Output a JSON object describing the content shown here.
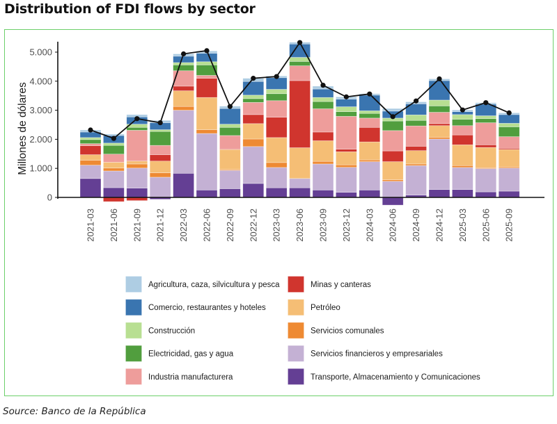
{
  "page": {
    "title": "Distribution of FDI flows by sector",
    "source": "Source: Banco de la República"
  },
  "chart_data": {
    "type": "bar",
    "stacked": true,
    "title": "Distribution of FDI flows by sector",
    "xlabel": "",
    "ylabel": "Millones de dólares",
    "ylim": [
      -300,
      5400
    ],
    "yticks": [
      0,
      1000,
      2000,
      3000,
      4000,
      5000
    ],
    "ytick_labels": [
      "0",
      "1.000",
      "2.000",
      "3.000",
      "4.000",
      "5.000"
    ],
    "grid": false,
    "legend_position": "bottom",
    "categories": [
      "2021-03",
      "2021-06",
      "2021-09",
      "2021-12",
      "2022-03",
      "2022-06",
      "2022-09",
      "2022-12",
      "2023-03",
      "2023-06",
      "2023-09",
      "2023-12",
      "2024-03",
      "2024-06",
      "2024-09",
      "2024-12",
      "2025-03",
      "2025-06",
      "2025-09"
    ],
    "series": [
      {
        "name": "Transporte, Almacenamiento y Comunicaciones",
        "color": "#643f94",
        "values": [
          650,
          335,
          320,
          -65,
          830,
          255,
          300,
          480,
          330,
          330,
          255,
          175,
          255,
          -265,
          80,
          270,
          270,
          190,
          215
        ]
      },
      {
        "name": "Servicios financieros y empresariales",
        "color": "#c4b1d4",
        "values": [
          460,
          575,
          690,
          695,
          2170,
          1945,
          630,
          1270,
          700,
          320,
          895,
          860,
          975,
          555,
          1015,
          1740,
          760,
          800,
          795
        ]
      },
      {
        "name": "Servicios comunales",
        "color": "#ee8a33",
        "values": [
          170,
          100,
          140,
          150,
          130,
          130,
          30,
          260,
          170,
          0,
          90,
          85,
          60,
          50,
          55,
          60,
          65,
          30,
          40
        ]
      },
      {
        "name": "Petróleo",
        "color": "#f5be75",
        "values": [
          190,
          200,
          100,
          405,
          540,
          1110,
          690,
          530,
          860,
          1060,
          710,
          450,
          620,
          625,
          460,
          400,
          715,
          700,
          600
        ]
      },
      {
        "name": "Minas y canteras",
        "color": "#d0352e",
        "values": [
          310,
          -145,
          -110,
          220,
          160,
          660,
          20,
          310,
          700,
          2310,
          300,
          90,
          500,
          370,
          150,
          70,
          340,
          90,
          40
        ]
      },
      {
        "name": "Industria manufacturera",
        "color": "#ee9d9b",
        "values": [
          70,
          280,
          1060,
          320,
          530,
          100,
          460,
          420,
          570,
          510,
          800,
          1130,
          320,
          700,
          700,
          390,
          320,
          760,
          400
        ]
      },
      {
        "name": "Electricidad, gas y agua",
        "color": "#519e3e",
        "values": [
          140,
          300,
          100,
          480,
          200,
          360,
          280,
          130,
          240,
          150,
          250,
          160,
          160,
          330,
          190,
          220,
          220,
          140,
          340
        ]
      },
      {
        "name": "Construcción",
        "color": "#b8df92",
        "values": [
          70,
          80,
          110,
          60,
          80,
          110,
          110,
          120,
          150,
          140,
          140,
          170,
          90,
          100,
          190,
          200,
          160,
          100,
          120
        ]
      },
      {
        "name": "Comercio, restaurantes y hoteles",
        "color": "#3a75b0",
        "values": [
          190,
          260,
          250,
          240,
          220,
          290,
          540,
          470,
          400,
          460,
          290,
          260,
          540,
          240,
          380,
          670,
          100,
          400,
          300
        ]
      },
      {
        "name": "Agricultura, caza, silvicultura y pesca",
        "color": "#aecde3",
        "values": [
          70,
          50,
          80,
          80,
          80,
          80,
          80,
          110,
          60,
          60,
          100,
          80,
          50,
          90,
          70,
          60,
          60,
          50,
          60
        ]
      }
    ],
    "total_line": {
      "name": "Total",
      "color": "#111111",
      "values": [
        2320,
        2030,
        2710,
        2570,
        4940,
        5050,
        3130,
        4100,
        4160,
        5330,
        3860,
        3460,
        3560,
        2780,
        3320,
        4080,
        3010,
        3260,
        2910
      ]
    },
    "legend": {
      "left": [
        {
          "label": "Agricultura, caza, silvicultura y pesca",
          "color": "#aecde3"
        },
        {
          "label": "Comercio, restaurantes y hoteles",
          "color": "#3a75b0"
        },
        {
          "label": "Construcción",
          "color": "#b8df92"
        },
        {
          "label": "Electricidad, gas y agua",
          "color": "#519e3e"
        },
        {
          "label": "Industria manufacturera",
          "color": "#ee9d9b"
        }
      ],
      "right": [
        {
          "label": "Minas y canteras",
          "color": "#d0352e"
        },
        {
          "label": "Petróleo",
          "color": "#f5be75"
        },
        {
          "label": "Servicios comunales",
          "color": "#ee8a33"
        },
        {
          "label": "Servicios financieros y empresariales",
          "color": "#c4b1d4"
        },
        {
          "label": "Transporte, Almacenamiento y Comunicaciones",
          "color": "#643f94"
        }
      ]
    }
  }
}
